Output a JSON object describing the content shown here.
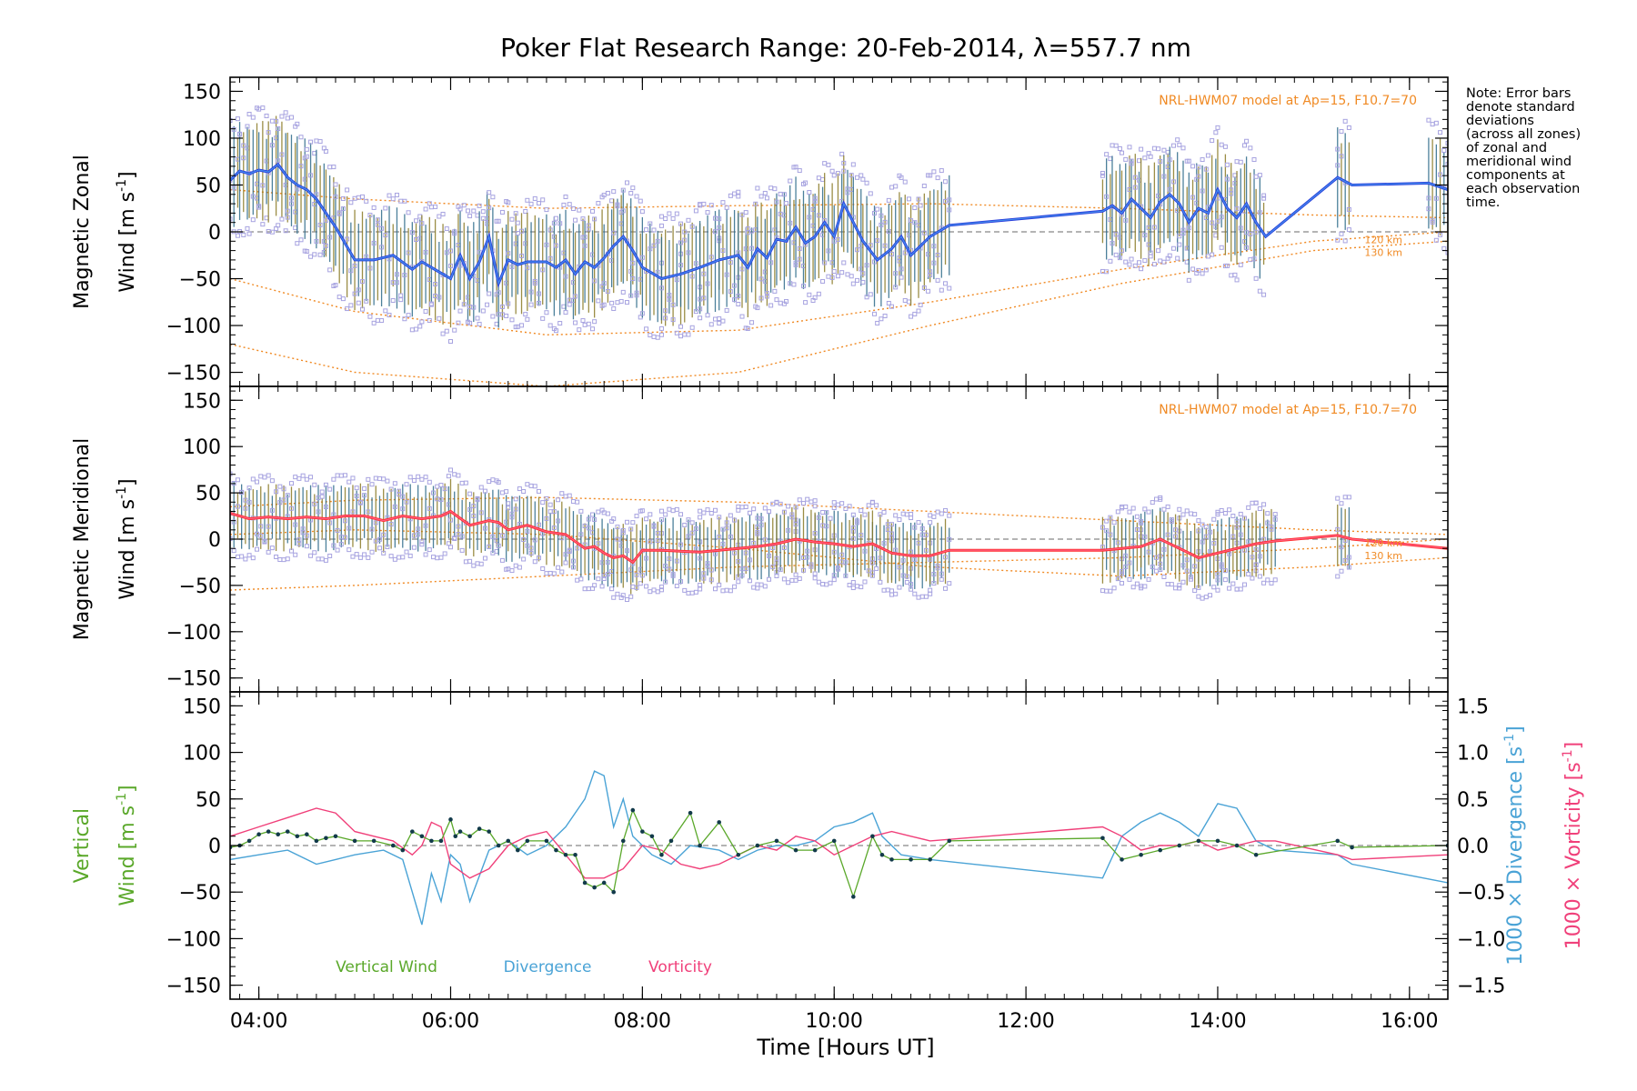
{
  "colors": {
    "zonal_mean": "#2a3ddb",
    "zonal_mean_inner": "#4aa3f0",
    "meridional_mean": "#ff2d2d",
    "meridional_mean_inner": "#ff6b9a",
    "model": "#f08a24",
    "vertical": "#5aa82a",
    "divergence": "#4aa3d6",
    "vorticity": "#f0407a",
    "scatter": "#a7a3e0",
    "errbar_a": "#2d6b8a",
    "errbar_b": "#8a7a25",
    "zero_line": "#888888"
  },
  "chart_data": {
    "type": "line",
    "title": "Poker Flat Research Range: 20-Feb-2014, λ=557.7 nm",
    "xlabel": "Time [Hours UT]",
    "xlim": [
      3.7,
      16.4
    ],
    "x_ticks": [
      4,
      6,
      8,
      10,
      12,
      14,
      16
    ],
    "x_tick_labels": [
      "04:00",
      "06:00",
      "08:00",
      "10:00",
      "12:00",
      "14:00",
      "16:00"
    ],
    "note": [
      "Note: Error bars",
      "denote standard",
      "deviations",
      "(across all zones)",
      "of zonal and",
      "meridional wind",
      "components at",
      "each observation",
      "time."
    ],
    "panels": [
      {
        "id": "zonal",
        "ylabel_line1": "Magnetic Zonal",
        "ylabel_line2": "Wind [m s",
        "ylabel_sup": "-1",
        "ylabel_close": "]",
        "ylim": [
          -165,
          165
        ],
        "y_ticks": [
          -150,
          -100,
          -50,
          0,
          50,
          100,
          150
        ],
        "y_tick_labels": [
          "−150",
          "−100",
          "−50",
          "0",
          "50",
          "100",
          "150"
        ],
        "model_label": "NRL-HWM07 model at Ap=15, F10.7=70",
        "alt_labels": [
          "120 km",
          "130 km"
        ],
        "series": [
          {
            "name": "Magnetic Zonal Wind",
            "x": [
              3.7,
              3.8,
              3.9,
              4.0,
              4.1,
              4.2,
              4.3,
              4.4,
              4.5,
              4.6,
              4.7,
              4.8,
              5.0,
              5.2,
              5.4,
              5.6,
              5.7,
              5.8,
              6.0,
              6.1,
              6.2,
              6.3,
              6.4,
              6.5,
              6.6,
              6.7,
              6.8,
              7.0,
              7.1,
              7.2,
              7.3,
              7.4,
              7.5,
              7.6,
              7.7,
              7.8,
              7.9,
              8.0,
              8.2,
              8.4,
              8.6,
              8.8,
              9.0,
              9.1,
              9.2,
              9.3,
              9.4,
              9.5,
              9.6,
              9.7,
              9.8,
              9.9,
              10.0,
              10.1,
              10.2,
              10.3,
              10.45,
              10.6,
              10.7,
              10.8,
              10.9,
              11.0,
              11.2,
              12.8,
              12.9,
              13.0,
              13.1,
              13.2,
              13.3,
              13.4,
              13.5,
              13.6,
              13.7,
              13.8,
              13.9,
              14.0,
              14.1,
              14.2,
              14.3,
              14.4,
              14.5,
              15.25,
              15.4,
              16.2,
              16.4
            ],
            "y": [
              55,
              65,
              62,
              66,
              64,
              72,
              58,
              50,
              45,
              35,
              20,
              5,
              -30,
              -30,
              -25,
              -40,
              -32,
              -38,
              -50,
              -25,
              -50,
              -32,
              -5,
              -55,
              -30,
              -35,
              -32,
              -32,
              -38,
              -30,
              -45,
              -32,
              -38,
              -28,
              -15,
              -5,
              -20,
              -38,
              -50,
              -45,
              -38,
              -30,
              -25,
              -38,
              -18,
              -28,
              -8,
              -10,
              5,
              -12,
              -5,
              10,
              -5,
              30,
              10,
              -10,
              -30,
              -18,
              -5,
              -25,
              -15,
              -5,
              7,
              22,
              28,
              20,
              35,
              25,
              15,
              32,
              40,
              30,
              10,
              25,
              20,
              45,
              25,
              15,
              30,
              10,
              -5,
              58,
              50,
              52,
              45
            ]
          },
          {
            "name": "Model 120 km",
            "x": [
              3.7,
              5.0,
              7.0,
              9.0,
              11.0,
              13.0,
              15.0,
              16.4
            ],
            "y": [
              -50,
              -85,
              -110,
              -105,
              -75,
              -40,
              -10,
              0
            ]
          },
          {
            "name": "Model 130 km",
            "x": [
              3.7,
              5.0,
              7.0,
              9.0,
              11.0,
              13.0,
              15.0,
              16.4
            ],
            "y": [
              -120,
              -150,
              -165,
              -150,
              -100,
              -55,
              -20,
              -10
            ]
          },
          {
            "name": "Model upper",
            "x": [
              3.7,
              5.0,
              7.0,
              9.0,
              11.0,
              13.0,
              15.0,
              16.4
            ],
            "y": [
              45,
              35,
              25,
              28,
              30,
              25,
              18,
              15
            ]
          }
        ]
      },
      {
        "id": "meridional",
        "ylabel_line1": "Magnetic Meridional",
        "ylabel_line2": "Wind [m s",
        "ylabel_sup": "-1",
        "ylabel_close": "]",
        "ylim": [
          -165,
          165
        ],
        "y_ticks": [
          -150,
          -100,
          -50,
          0,
          50,
          100,
          150
        ],
        "y_tick_labels": [
          "−150",
          "−100",
          "−50",
          "0",
          "50",
          "100",
          "150"
        ],
        "model_label": "NRL-HWM07 model at Ap=15, F10.7=70",
        "alt_labels": [
          "120 km",
          "130 km"
        ],
        "series": [
          {
            "name": "Magnetic Meridional Wind",
            "x": [
              3.7,
              3.9,
              4.1,
              4.3,
              4.5,
              4.7,
              4.9,
              5.1,
              5.3,
              5.5,
              5.7,
              5.9,
              6.0,
              6.2,
              6.4,
              6.5,
              6.6,
              6.8,
              7.0,
              7.2,
              7.4,
              7.5,
              7.6,
              7.7,
              7.8,
              7.9,
              8.0,
              8.2,
              8.6,
              9.0,
              9.2,
              9.4,
              9.6,
              9.8,
              10.0,
              10.2,
              10.4,
              10.6,
              10.8,
              11.0,
              11.2,
              12.8,
              13.0,
              13.2,
              13.4,
              13.6,
              13.8,
              14.0,
              14.2,
              14.4,
              14.6,
              15.25,
              15.4,
              16.4
            ],
            "y": [
              28,
              22,
              24,
              22,
              24,
              22,
              25,
              25,
              20,
              25,
              22,
              25,
              30,
              15,
              20,
              18,
              10,
              15,
              8,
              5,
              -10,
              -8,
              -15,
              -20,
              -18,
              -25,
              -12,
              -12,
              -14,
              -10,
              -8,
              -5,
              0,
              -3,
              -5,
              -8,
              -5,
              -15,
              -18,
              -18,
              -12,
              -12,
              -10,
              -8,
              0,
              -10,
              -20,
              -15,
              -10,
              -5,
              -2,
              4,
              0,
              -10
            ]
          },
          {
            "name": "Model 120 km",
            "x": [
              3.7,
              5.0,
              7.0,
              9.0,
              11.0,
              13.0,
              15.0,
              16.4
            ],
            "y": [
              -55,
              -50,
              -40,
              -30,
              -25,
              -20,
              -10,
              0
            ]
          },
          {
            "name": "Model 130 km",
            "x": [
              3.7,
              5.0,
              7.0,
              9.0,
              11.0,
              13.0,
              15.0,
              16.4
            ],
            "y": [
              5,
              10,
              5,
              -10,
              -30,
              -40,
              -30,
              -20
            ]
          },
          {
            "name": "Model upper",
            "x": [
              3.7,
              5.0,
              7.0,
              9.0,
              11.0,
              13.0,
              15.0,
              16.4
            ],
            "y": [
              35,
              42,
              45,
              40,
              30,
              20,
              10,
              5
            ]
          }
        ]
      },
      {
        "id": "vertical",
        "ylabel_line1": "Vertical",
        "ylabel_line2": "Wind [m s",
        "ylabel_sup": "-1",
        "ylabel_close": "]",
        "ylim": [
          -165,
          165
        ],
        "y_ticks": [
          -150,
          -100,
          -50,
          0,
          50,
          100,
          150
        ],
        "y_tick_labels": [
          "−150",
          "−100",
          "−50",
          "0",
          "50",
          "100",
          "150"
        ],
        "y2lim": [
          -1.65,
          1.65
        ],
        "y2_ticks": [
          -1.5,
          -1.0,
          -0.5,
          0.0,
          0.5,
          1.0,
          1.5
        ],
        "y2_tick_labels": [
          "−1.5",
          "−1.0",
          "−0.5",
          "0.0",
          "0.5",
          "1.0",
          "1.5"
        ],
        "y2label_div": "1000 × Divergence [s",
        "y2label_vort": "1000 × Vorticity [s",
        "y2label_sup": "-1",
        "y2label_close": "]",
        "legend": [
          "Vertical Wind",
          "Divergence",
          "Vorticity"
        ],
        "series": [
          {
            "name": "Vertical Wind",
            "x": [
              3.7,
              3.8,
              3.9,
              4.0,
              4.1,
              4.2,
              4.3,
              4.4,
              4.5,
              4.6,
              4.7,
              4.8,
              5.0,
              5.2,
              5.4,
              5.5,
              5.6,
              5.7,
              5.8,
              5.9,
              6.0,
              6.05,
              6.1,
              6.2,
              6.3,
              6.4,
              6.5,
              6.6,
              6.7,
              6.8,
              7.0,
              7.1,
              7.2,
              7.3,
              7.4,
              7.5,
              7.6,
              7.7,
              7.8,
              7.9,
              8.0,
              8.1,
              8.2,
              8.3,
              8.5,
              8.6,
              8.8,
              9.0,
              9.2,
              9.4,
              9.6,
              9.8,
              10.0,
              10.2,
              10.4,
              10.5,
              10.6,
              10.8,
              11.0,
              11.2,
              12.8,
              13.0,
              13.2,
              13.4,
              13.6,
              13.8,
              14.0,
              14.2,
              14.4,
              15.25,
              15.4,
              16.4
            ],
            "y": [
              -2,
              0,
              5,
              12,
              15,
              12,
              15,
              10,
              12,
              5,
              8,
              10,
              5,
              5,
              0,
              -5,
              15,
              10,
              5,
              5,
              28,
              10,
              15,
              10,
              18,
              15,
              0,
              5,
              -5,
              5,
              5,
              -5,
              -10,
              -10,
              -40,
              -45,
              -40,
              -50,
              5,
              38,
              15,
              10,
              -10,
              5,
              35,
              0,
              25,
              -10,
              0,
              5,
              -5,
              -5,
              5,
              -55,
              10,
              -10,
              -15,
              -15,
              -15,
              5,
              8,
              -15,
              -10,
              -5,
              0,
              5,
              5,
              0,
              -10,
              5,
              -2,
              0
            ]
          },
          {
            "name": "Divergence",
            "axis": "y2",
            "x": [
              3.7,
              4.0,
              4.3,
              4.6,
              4.8,
              5.0,
              5.3,
              5.5,
              5.7,
              5.8,
              5.9,
              6.0,
              6.1,
              6.2,
              6.4,
              6.6,
              6.8,
              7.0,
              7.2,
              7.4,
              7.5,
              7.6,
              7.7,
              7.8,
              7.9,
              8.0,
              8.1,
              8.3,
              8.5,
              8.8,
              9.0,
              9.2,
              9.4,
              9.6,
              9.8,
              10.0,
              10.2,
              10.4,
              10.5,
              10.7,
              11.0,
              12.8,
              13.0,
              13.2,
              13.4,
              13.6,
              13.8,
              14.0,
              14.2,
              14.4,
              14.6,
              15.25,
              15.4,
              16.4
            ],
            "y": [
              -0.15,
              -0.1,
              -0.05,
              -0.2,
              -0.15,
              -0.1,
              -0.05,
              -0.15,
              -0.85,
              -0.3,
              -0.6,
              -0.1,
              -0.2,
              -0.6,
              -0.05,
              0.05,
              -0.1,
              0.0,
              0.2,
              0.5,
              0.8,
              0.75,
              0.2,
              0.5,
              0.1,
              0.0,
              -0.1,
              -0.2,
              0.0,
              -0.05,
              -0.15,
              -0.05,
              0.0,
              0.0,
              0.05,
              0.2,
              0.25,
              0.35,
              0.1,
              -0.1,
              -0.15,
              -0.35,
              0.1,
              0.25,
              0.35,
              0.25,
              0.1,
              0.45,
              0.4,
              0.05,
              -0.05,
              -0.1,
              -0.2,
              -0.4
            ]
          },
          {
            "name": "Vorticity",
            "axis": "y2",
            "x": [
              3.7,
              4.0,
              4.3,
              4.6,
              4.8,
              5.0,
              5.2,
              5.4,
              5.6,
              5.7,
              5.8,
              5.9,
              6.0,
              6.2,
              6.4,
              6.6,
              6.8,
              7.0,
              7.2,
              7.4,
              7.6,
              7.8,
              8.0,
              8.2,
              8.4,
              8.6,
              8.8,
              9.0,
              9.2,
              9.4,
              9.6,
              9.8,
              10.0,
              10.2,
              10.4,
              10.6,
              10.8,
              11.0,
              12.8,
              13.0,
              13.2,
              13.4,
              13.6,
              13.8,
              14.0,
              14.2,
              14.4,
              14.6,
              15.25,
              15.4,
              16.4
            ],
            "y": [
              0.1,
              0.2,
              0.3,
              0.4,
              0.35,
              0.15,
              0.1,
              0.05,
              -0.1,
              0.0,
              0.25,
              0.2,
              -0.2,
              -0.35,
              -0.25,
              0.0,
              0.1,
              0.15,
              -0.1,
              -0.35,
              -0.35,
              -0.25,
              0.0,
              -0.05,
              -0.2,
              -0.25,
              -0.2,
              -0.1,
              0.0,
              -0.05,
              0.1,
              0.05,
              -0.1,
              0.0,
              0.1,
              0.15,
              0.1,
              0.05,
              0.2,
              0.1,
              -0.05,
              0.0,
              0.0,
              0.05,
              -0.05,
              0.0,
              0.05,
              0.05,
              -0.1,
              -0.15,
              -0.1
            ]
          }
        ]
      }
    ]
  }
}
